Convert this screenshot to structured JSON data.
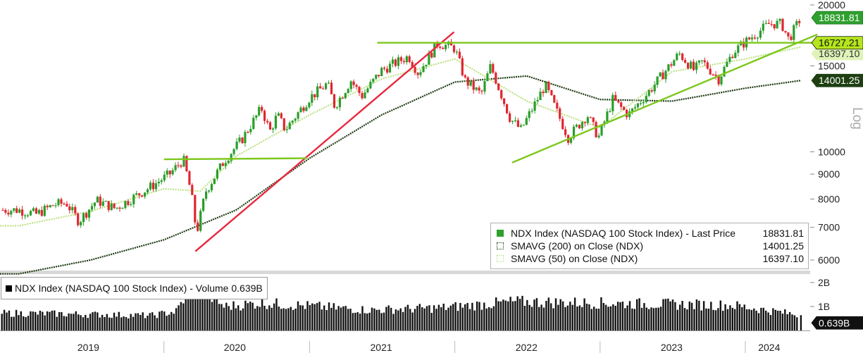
{
  "chart_data": [
    {
      "type": "candlestick",
      "title": "NDX Index (NASDAQ 100 Stock Index)",
      "ylabel": "Log",
      "yscale": "log",
      "ylim": [
        5600,
        20000
      ],
      "y_ticks": [
        "20000",
        "15000",
        "10000",
        "9000",
        "8000",
        "7000",
        "6000"
      ],
      "x_ticks": [
        "2019",
        "2020",
        "2021",
        "2022",
        "2023",
        "2024"
      ],
      "colors": {
        "up": "#2a9d2a",
        "down": "#e0262f",
        "sma200": "#1e3a12",
        "sma50": "#b7e07a",
        "trend_green": "#7cc71c",
        "trend_red": "#e8283f"
      },
      "price_path": [
        [
          "2019-01-01",
          7600
        ],
        [
          "2019-02-15",
          7450
        ],
        [
          "2019-04-01",
          7800
        ],
        [
          "2019-05-01",
          7850
        ],
        [
          "2019-06-01",
          7200
        ],
        [
          "2019-07-15",
          7950
        ],
        [
          "2019-09-01",
          7650
        ],
        [
          "2019-10-15",
          8050
        ],
        [
          "2019-12-01",
          8500
        ],
        [
          "2020-01-15",
          9000
        ],
        [
          "2020-02-19",
          9650
        ],
        [
          "2020-03-10",
          8200
        ],
        [
          "2020-03-23",
          6800
        ],
        [
          "2020-04-15",
          8300
        ],
        [
          "2020-06-01",
          9600
        ],
        [
          "2020-07-15",
          10600
        ],
        [
          "2020-09-02",
          12300
        ],
        [
          "2020-09-23",
          11000
        ],
        [
          "2020-10-12",
          11900
        ],
        [
          "2020-11-01",
          11100
        ],
        [
          "2021-01-01",
          12900
        ],
        [
          "2021-02-15",
          13800
        ],
        [
          "2021-03-05",
          12400
        ],
        [
          "2021-04-15",
          14000
        ],
        [
          "2021-05-12",
          13000
        ],
        [
          "2021-07-01",
          14700
        ],
        [
          "2021-09-07",
          15700
        ],
        [
          "2021-10-01",
          14500
        ],
        [
          "2021-11-19",
          16700
        ],
        [
          "2022-01-01",
          16300
        ],
        [
          "2022-01-27",
          14000
        ],
        [
          "2022-03-08",
          13100
        ],
        [
          "2022-04-01",
          15000
        ],
        [
          "2022-05-20",
          11700
        ],
        [
          "2022-06-16",
          11100
        ],
        [
          "2022-08-16",
          13700
        ],
        [
          "2022-10-13",
          10700
        ],
        [
          "2022-11-30",
          11900
        ],
        [
          "2022-12-28",
          10700
        ],
        [
          "2023-02-02",
          12800
        ],
        [
          "2023-03-13",
          11900
        ],
        [
          "2023-05-01",
          13200
        ],
        [
          "2023-07-19",
          15900
        ],
        [
          "2023-08-25",
          14700
        ],
        [
          "2023-09-15",
          15300
        ],
        [
          "2023-10-26",
          14100
        ],
        [
          "2023-12-01",
          16000
        ],
        [
          "2024-01-01",
          16800
        ],
        [
          "2024-03-01",
          18300
        ],
        [
          "2024-04-01",
          18300
        ],
        [
          "2024-04-19",
          17000
        ],
        [
          "2024-05-20",
          18831.81
        ]
      ],
      "series": [
        {
          "name": "NDX Index (NASDAQ 100 Stock Index) - Last Price",
          "last": "18831.81"
        },
        {
          "name": "SMAVG (200)  on Close (NDX)",
          "last": "14001.25"
        },
        {
          "name": "SMAVG (50)  on Close (NDX)",
          "last": "16397.10"
        }
      ],
      "sma200_path": [
        [
          "2019-01-01",
          5620
        ],
        [
          "2019-07-01",
          6000
        ],
        [
          "2020-01-01",
          6600
        ],
        [
          "2020-07-01",
          7600
        ],
        [
          "2021-01-01",
          9700
        ],
        [
          "2021-07-01",
          11900
        ],
        [
          "2022-01-01",
          13900
        ],
        [
          "2022-07-01",
          14300
        ],
        [
          "2023-01-01",
          12800
        ],
        [
          "2023-07-01",
          12700
        ],
        [
          "2024-01-01",
          13500
        ],
        [
          "2024-05-20",
          14001.25
        ]
      ],
      "sma50_path": [
        [
          "2019-01-01",
          7050
        ],
        [
          "2019-07-01",
          7550
        ],
        [
          "2020-01-01",
          8400
        ],
        [
          "2020-04-01",
          8300
        ],
        [
          "2020-07-01",
          9800
        ],
        [
          "2021-01-01",
          11900
        ],
        [
          "2021-07-01",
          14100
        ],
        [
          "2022-01-01",
          15500
        ],
        [
          "2022-07-01",
          12700
        ],
        [
          "2023-01-01",
          11200
        ],
        [
          "2023-07-01",
          14600
        ],
        [
          "2024-01-01",
          15500
        ],
        [
          "2024-05-20",
          16397.1
        ]
      ],
      "trend_lines": [
        {
          "color": "red",
          "from": [
            "2020-03-20",
            6250
          ],
          "to": [
            "2021-12-30",
            17600
          ]
        },
        {
          "color": "green",
          "from": [
            "2020-01-01",
            9650
          ],
          "to": [
            "2020-12-25",
            9700
          ]
        },
        {
          "color": "green",
          "from": [
            "2021-06-20",
            16727.21
          ],
          "to": [
            "2024-06-30",
            16727.21
          ]
        },
        {
          "color": "green",
          "from": [
            "2022-05-25",
            9500
          ],
          "to": [
            "2024-06-30",
            17400
          ]
        }
      ],
      "price_labels": [
        {
          "value": "18831.81",
          "style": "bright"
        },
        {
          "value": "16727.21",
          "style": "bright"
        },
        {
          "value": "16397.10",
          "style": "pale"
        },
        {
          "value": "14001.25",
          "style": "dark"
        }
      ]
    },
    {
      "type": "bar",
      "title": "NDX Index (NASDAQ 100 Stock Index) - Volume 0.639B",
      "series": [
        {
          "name": "NDX Index (NASDAQ 100 Stock Index) - Volume",
          "last": "0.639B"
        }
      ],
      "y_ticks": [
        "2B",
        "1B"
      ],
      "ylim": [
        0,
        2.2
      ],
      "volume_profile": [
        [
          "2019-01-01",
          0.72
        ],
        [
          "2019-06-01",
          0.68
        ],
        [
          "2019-12-01",
          0.62
        ],
        [
          "2020-02-01",
          0.8
        ],
        [
          "2020-03-15",
          1.95
        ],
        [
          "2020-06-01",
          1.0
        ],
        [
          "2020-09-01",
          1.15
        ],
        [
          "2021-01-01",
          1.02
        ],
        [
          "2021-06-01",
          0.85
        ],
        [
          "2021-12-01",
          0.95
        ],
        [
          "2022-06-01",
          1.2
        ],
        [
          "2022-12-01",
          1.15
        ],
        [
          "2023-06-01",
          1.1
        ],
        [
          "2023-12-01",
          1.05
        ],
        [
          "2024-05-20",
          0.639
        ]
      ],
      "last_label": "0.639B"
    }
  ],
  "legend": {
    "rows": [
      {
        "name": "NDX Index (NASDAQ 100 Stock Index) - Last Price",
        "value": "18831.81"
      },
      {
        "name": "SMAVG (200)  on Close (NDX)",
        "value": "14001.25"
      },
      {
        "name": "SMAVG (50)  on Close (NDX)",
        "value": "16397.10"
      }
    ]
  },
  "volume_legend": {
    "text": "NDX Index (NASDAQ 100 Stock Index) - Volume 0.639B"
  }
}
